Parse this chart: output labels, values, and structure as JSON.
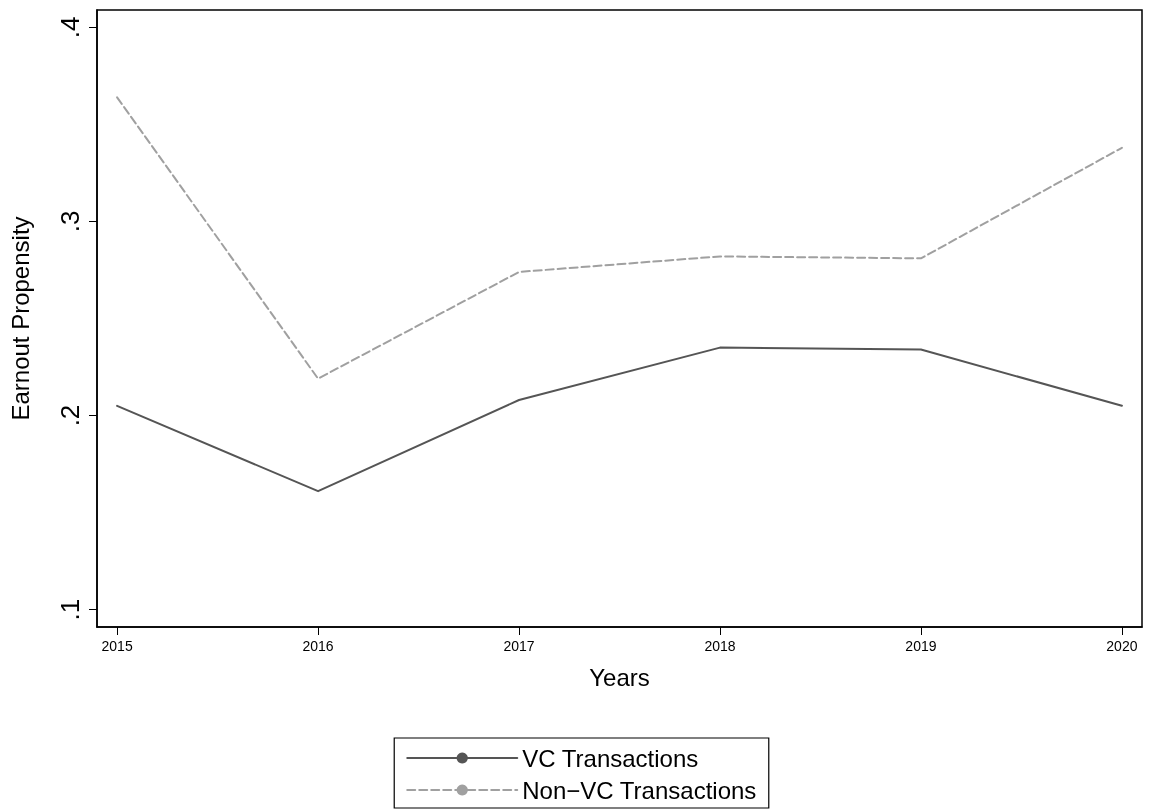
{
  "chart_data": {
    "type": "line",
    "xlabel": "Years",
    "ylabel": "Earnout Propensity",
    "x": [
      2015,
      2016,
      2017,
      2018,
      2019,
      2020
    ],
    "series": [
      {
        "name": "VC Transactions",
        "color": "#555555",
        "line_style": "solid",
        "values": [
          0.205,
          0.161,
          0.208,
          0.235,
          0.234,
          0.205
        ]
      },
      {
        "name": "Non−VC Transactions",
        "color": "#a0a0a0",
        "line_style": "dashed",
        "values": [
          0.364,
          0.219,
          0.274,
          0.282,
          0.281,
          0.338
        ]
      }
    ],
    "xlim": [
      2014.9,
      2020.1
    ],
    "xticks": [
      2015,
      2016,
      2017,
      2018,
      2019,
      2020
    ],
    "ylim": [
      0.091,
      0.409
    ],
    "yticks": [
      {
        "value": 0.1,
        "label": ".1"
      },
      {
        "value": 0.2,
        "label": ".2"
      },
      {
        "value": 0.3,
        "label": ".3"
      },
      {
        "value": 0.4,
        "label": ".4"
      }
    ],
    "grid": false,
    "legend": "bottom",
    "marker": "none"
  }
}
